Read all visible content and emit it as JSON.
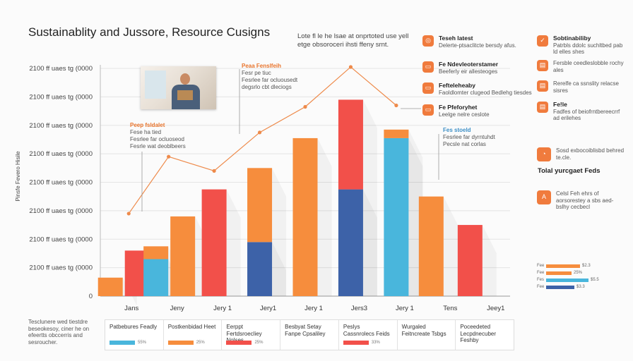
{
  "title": "Sustainablity and Jussore, Resource Cusigns",
  "top_note": "Lote fl le he lsae at onprtoted use yell etge obsoroceri ihsti ffeny srnt.",
  "colors": {
    "orange": "#f68d3d",
    "red": "#f2504a",
    "blue": "#3d62a8",
    "cyan": "#49b6dc",
    "line": "#ee8a4a"
  },
  "chart_data": {
    "type": "bar",
    "ylabel": "Pinsfe Fevero Hisile",
    "ytick_labels": [
      "0",
      "2100 ff uaes tg (0000",
      "2100 ff uaes tg (0000",
      "2100 ff uaes tg (0000",
      "2100 ff uaes tg (0000",
      "2100 ff uaes tg (0000",
      "2100 ff uaes tg (0000",
      "2100 ff uaes tg (0000",
      "2100 ff uaes tg (0000"
    ],
    "ylim": [
      0,
      8
    ],
    "categories": [
      "Jans",
      "Jeny",
      "Jery 1",
      "Jery1",
      "Jery 1",
      "Jers3",
      "Jery 1",
      "Tens",
      "Jeey1"
    ],
    "bars": [
      {
        "cat": 0,
        "color": "orange",
        "bottom": 0,
        "top": 0.65
      },
      {
        "cat": 0,
        "color": "red",
        "bottom": 0,
        "top": 1.6
      },
      {
        "cat": 1,
        "color": "cyan",
        "bottom": 0,
        "top": 1.3
      },
      {
        "cat": 1,
        "color": "orange",
        "bottom": 1.3,
        "top": 1.75
      },
      {
        "cat": 1,
        "color": "orange",
        "bottom": 0,
        "top": 2.8
      },
      {
        "cat": 2,
        "color": "red",
        "bottom": 0,
        "top": 3.75
      },
      {
        "cat": 3,
        "color": "blue",
        "bottom": 0,
        "top": 1.9
      },
      {
        "cat": 3,
        "color": "orange",
        "bottom": 1.9,
        "top": 4.5
      },
      {
        "cat": 4,
        "color": "orange",
        "bottom": 0,
        "top": 5.55
      },
      {
        "cat": 5,
        "color": "blue",
        "bottom": 0,
        "top": 3.75
      },
      {
        "cat": 5,
        "color": "red",
        "bottom": 3.75,
        "top": 6.9
      },
      {
        "cat": 6,
        "color": "cyan",
        "bottom": 0,
        "top": 5.55
      },
      {
        "cat": 6,
        "color": "orange",
        "bottom": 5.55,
        "top": 5.85
      },
      {
        "cat": 7,
        "color": "orange",
        "bottom": 0,
        "top": 3.5
      },
      {
        "cat": 7,
        "color": "red",
        "bottom": 0,
        "top": 2.5
      }
    ],
    "line": [
      {
        "x": 0.5,
        "y": 2.9
      },
      {
        "x": 1.5,
        "y": 4.9
      },
      {
        "x": 2.5,
        "y": 4.4
      },
      {
        "x": 3.5,
        "y": 5.75
      },
      {
        "x": 4.5,
        "y": 6.65
      },
      {
        "x": 5.5,
        "y": 8.05
      },
      {
        "x": 6.5,
        "y": 6.7
      }
    ]
  },
  "annotations": [
    {
      "title": "Peaa Fenslfeih",
      "lines": [
        "Fesr pe tiuc",
        "Fesrlee far ocluousedt",
        "degsrlo cbt dleciogs"
      ]
    },
    {
      "title": "Peep fsldalet",
      "lines": [
        "Fese ha tied",
        "Fesrlee far ocluoseod",
        "Fesrle wat deoblbeers"
      ]
    },
    {
      "title": "Fes stoeld",
      "lines": [
        "Fesrlee far dyrntuhdt",
        "Pecsle nat corlas"
      ]
    }
  ],
  "sidebar_mid": [
    {
      "title": "Teseh latest",
      "body": "Delerte-ptsaclitcte bersdy afus."
    },
    {
      "title": "Fe Ndevleoterstamer",
      "body": "Beeferly eir allesteoges"
    },
    {
      "title": "Fefteleheaby",
      "body": "Faoldlomter clugeod Bedlehg tiesdes"
    },
    {
      "title": "Fe Pfeforyhet",
      "body": "Leelge nelre ceslote"
    }
  ],
  "sidebar_right": [
    {
      "title": "Sobtinabiliby",
      "body": "Patrbls ddolc suchltbed pab ld elles shes"
    },
    {
      "title": "",
      "body": "Fersble ceedleslobble rochy ales"
    },
    {
      "title": "",
      "body": "Rerelfe ca ssnslity relacse sisres"
    },
    {
      "title": "Fe!le",
      "body": "Fadfes of beiofrntbereecrrf ad erilehes"
    },
    {
      "title": "",
      "body": "Sosd exbocoiblisbd behred te.cle."
    },
    {
      "title": "Fe!le",
      "body": "Celsl Feh ehrs of aorsorestey a sbs aed-bslhy cecbecl"
    }
  ],
  "tolal_label": "Tolal yurcgaet Feds",
  "mini_bars": [
    {
      "key": "Fee",
      "color": "orange",
      "value": 0.6,
      "pct": "$2.3"
    },
    {
      "key": "Fee",
      "color": "orange",
      "value": 0.45,
      "pct": "25%"
    },
    {
      "key": "Fes",
      "color": "cyan",
      "value": 0.75,
      "pct": "$5.5"
    },
    {
      "key": "Fee",
      "color": "blue",
      "value": 0.5,
      "pct": "$3.3"
    }
  ],
  "footnote": "Tesclunere wed tiestdre beseokesoy, ciner he on efeertts obccerris and sesroucher.",
  "legend": [
    {
      "label": "Patbebures Feadly",
      "color": "cyan",
      "pct": "55%"
    },
    {
      "label": "Postkenbidad Heet",
      "color": "orange",
      "pct": "25%"
    },
    {
      "label": "Eerppt Fertdsroecliey Nolses",
      "color": "red",
      "pct": "25%"
    },
    {
      "label": "Besbyat Setay Fanpe Cpsaliley",
      "color": "",
      "pct": ""
    },
    {
      "label": "Peslys Cassnrolecs Feids",
      "color": "red",
      "pct": "33%"
    },
    {
      "label": "Wurgaled Feitncreate Tsbgs",
      "color": "",
      "pct": ""
    },
    {
      "label": "Poceedeted Lecpdnecuber Feshby",
      "color": "",
      "pct": ""
    }
  ]
}
